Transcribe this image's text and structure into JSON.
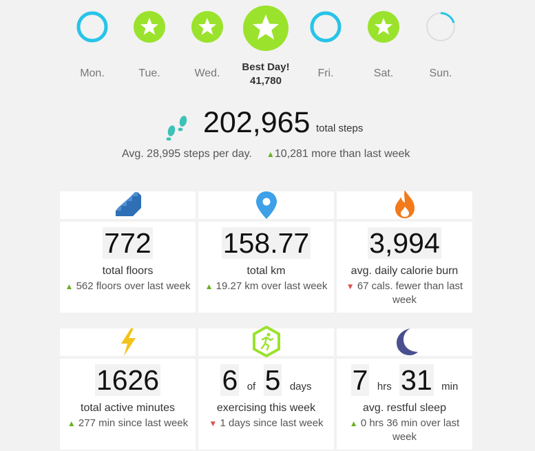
{
  "week": {
    "days": [
      {
        "label": "Mon.",
        "status": "ring-complete"
      },
      {
        "label": "Tue.",
        "status": "star"
      },
      {
        "label": "Wed.",
        "status": "star"
      },
      {
        "label": "Fri.",
        "status": "ring-complete"
      },
      {
        "label": "Sat.",
        "status": "star"
      },
      {
        "label": "Sun.",
        "status": "ring-partial",
        "progress": 0.3
      }
    ],
    "best_day": {
      "title": "Best Day!",
      "value": "41,780"
    }
  },
  "steps": {
    "total": "202,965",
    "unit": "total steps",
    "avg_text": "Avg. 28,995 steps per day.",
    "trend_text": "10,281 more than last week",
    "trend_dir": "up",
    "icon": "footprints-icon"
  },
  "cards": [
    {
      "icon": "stairs-icon",
      "value": "772",
      "label": "total floors",
      "trend": "562 floors over last week",
      "dir": "up"
    },
    {
      "icon": "location-pin-icon",
      "value": "158.77",
      "label": "total km",
      "trend": "19.27 km over last week",
      "dir": "up"
    },
    {
      "icon": "flame-icon",
      "value": "3,994",
      "label": "avg. daily calorie burn",
      "trend": "67 cals. fewer than last week",
      "dir": "down"
    },
    {
      "icon": "lightning-icon",
      "value": "1626",
      "label": "total active minutes",
      "trend": "277 min since last week",
      "dir": "up"
    },
    {
      "icon": "exercise-icon",
      "value_a": "6",
      "of": "of",
      "value_b": "5",
      "unit": "days",
      "label": "exercising this week",
      "trend": "1 days since last week",
      "dir": "down"
    },
    {
      "icon": "moon-icon",
      "hrs": "7",
      "hrs_unit": "hrs",
      "min": "31",
      "min_unit": "min",
      "label": "avg. restful sleep",
      "trend": "0 hrs 36 min over last week",
      "dir": "up"
    }
  ],
  "colors": {
    "green": "#9be22d",
    "cyan": "#27c4e8",
    "blue": "#2f6fb5",
    "orange": "#f27a1a",
    "yellow": "#f4c21b",
    "moon": "#4a4f8f"
  }
}
